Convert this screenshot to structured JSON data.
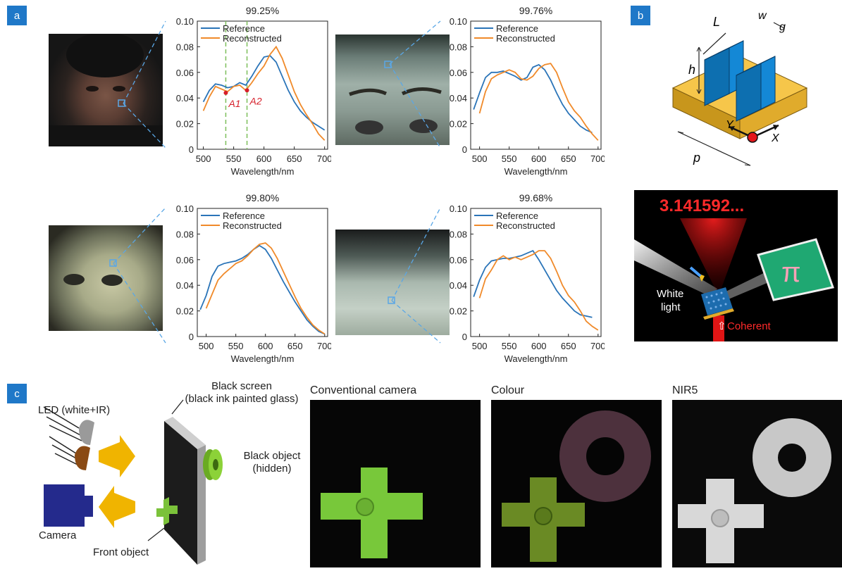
{
  "panels": {
    "a": "a",
    "b": "b",
    "c": "c"
  },
  "spectra": [
    {
      "accuracy": "99.25%",
      "axis_xlabel": "Wavelength/nm",
      "yticks": [
        "0.10",
        "0.08",
        "0.06",
        "0.04",
        "0.02",
        "0"
      ],
      "xticks": [
        "500",
        "550",
        "600",
        "650",
        "700"
      ],
      "markers": [
        "A1",
        "A2"
      ],
      "legend": [
        "Reference",
        "Reconstructed"
      ]
    },
    {
      "accuracy": "99.76%",
      "axis_xlabel": "Wavelength/nm",
      "yticks": [
        "0.10",
        "0.08",
        "0.06",
        "0.04",
        "0.02",
        "0"
      ],
      "xticks": [
        "500",
        "550",
        "600",
        "650",
        "700"
      ],
      "legend": [
        "Reference",
        "Reconstructed"
      ]
    },
    {
      "accuracy": "99.80%",
      "axis_xlabel": "Wavelength/nm",
      "yticks": [
        "0.10",
        "0.08",
        "0.06",
        "0.04",
        "0.02",
        "0"
      ],
      "xticks": [
        "500",
        "550",
        "600",
        "650",
        "700"
      ],
      "legend": [
        "Reference",
        "Reconstructed"
      ]
    },
    {
      "accuracy": "99.68%",
      "axis_xlabel": "Wavelength/nm",
      "yticks": [
        "0.10",
        "0.08",
        "0.06",
        "0.04",
        "0.02",
        "0"
      ],
      "xticks": [
        "500",
        "550",
        "600",
        "650",
        "700"
      ],
      "legend": [
        "Reference",
        "Reconstructed"
      ]
    }
  ],
  "chart_data": [
    {
      "type": "line",
      "xlabel": "Wavelength/nm",
      "ylabel": "",
      "title": "99.25%",
      "xlim": [
        490,
        705
      ],
      "ylim": [
        0,
        0.1
      ],
      "series": [
        {
          "name": "Reference",
          "x": [
            500,
            510,
            520,
            530,
            540,
            550,
            560,
            570,
            580,
            590,
            600,
            610,
            620,
            630,
            640,
            650,
            660,
            670,
            680,
            690,
            700
          ],
          "y": [
            0.037,
            0.046,
            0.051,
            0.05,
            0.048,
            0.049,
            0.052,
            0.05,
            0.057,
            0.065,
            0.072,
            0.073,
            0.068,
            0.057,
            0.046,
            0.037,
            0.03,
            0.025,
            0.021,
            0.018,
            0.015
          ]
        },
        {
          "name": "Reconstructed",
          "x": [
            500,
            510,
            520,
            530,
            540,
            550,
            560,
            570,
            580,
            590,
            600,
            610,
            620,
            630,
            640,
            650,
            660,
            670,
            680,
            690,
            700
          ],
          "y": [
            0.03,
            0.041,
            0.049,
            0.047,
            0.045,
            0.049,
            0.05,
            0.046,
            0.052,
            0.059,
            0.065,
            0.074,
            0.08,
            0.071,
            0.058,
            0.045,
            0.035,
            0.027,
            0.02,
            0.012,
            0.007
          ]
        }
      ],
      "annotations": [
        {
          "label": "A1",
          "x": 537,
          "y": 0.044
        },
        {
          "label": "A2",
          "x": 572,
          "y": 0.046
        }
      ]
    },
    {
      "type": "line",
      "xlabel": "Wavelength/nm",
      "ylabel": "",
      "title": "99.76%",
      "xlim": [
        485,
        705
      ],
      "ylim": [
        0,
        0.1
      ],
      "series": [
        {
          "name": "Reference",
          "x": [
            490,
            500,
            510,
            520,
            530,
            540,
            550,
            560,
            570,
            580,
            590,
            600,
            610,
            620,
            630,
            640,
            650,
            660,
            670,
            680,
            690
          ],
          "y": [
            0.031,
            0.044,
            0.056,
            0.06,
            0.06,
            0.061,
            0.059,
            0.057,
            0.054,
            0.056,
            0.064,
            0.066,
            0.062,
            0.054,
            0.044,
            0.035,
            0.028,
            0.023,
            0.018,
            0.015,
            0.013
          ]
        },
        {
          "name": "Reconstructed",
          "x": [
            500,
            510,
            520,
            530,
            540,
            550,
            560,
            570,
            580,
            590,
            600,
            610,
            620,
            630,
            640,
            650,
            660,
            670,
            680,
            690,
            700
          ],
          "y": [
            0.028,
            0.045,
            0.055,
            0.058,
            0.06,
            0.062,
            0.06,
            0.055,
            0.054,
            0.057,
            0.063,
            0.066,
            0.067,
            0.06,
            0.048,
            0.037,
            0.03,
            0.025,
            0.018,
            0.012,
            0.007
          ]
        }
      ]
    },
    {
      "type": "line",
      "xlabel": "Wavelength/nm",
      "ylabel": "",
      "title": "99.80%",
      "xlim": [
        485,
        705
      ],
      "ylim": [
        0,
        0.1
      ],
      "series": [
        {
          "name": "Reference",
          "x": [
            490,
            500,
            510,
            520,
            530,
            540,
            550,
            560,
            570,
            580,
            590,
            600,
            610,
            620,
            630,
            640,
            650,
            660,
            670,
            680,
            690,
            700
          ],
          "y": [
            0.021,
            0.032,
            0.047,
            0.055,
            0.057,
            0.058,
            0.059,
            0.061,
            0.064,
            0.068,
            0.071,
            0.068,
            0.061,
            0.052,
            0.043,
            0.035,
            0.027,
            0.02,
            0.013,
            0.008,
            0.004,
            0.002
          ]
        },
        {
          "name": "Reconstructed",
          "x": [
            500,
            510,
            520,
            530,
            540,
            550,
            560,
            570,
            580,
            590,
            600,
            610,
            620,
            630,
            640,
            650,
            660,
            670,
            680,
            690,
            700
          ],
          "y": [
            0.022,
            0.033,
            0.044,
            0.049,
            0.053,
            0.057,
            0.059,
            0.063,
            0.068,
            0.072,
            0.073,
            0.069,
            0.061,
            0.051,
            0.041,
            0.031,
            0.022,
            0.015,
            0.009,
            0.005,
            0.002
          ]
        }
      ]
    },
    {
      "type": "line",
      "xlabel": "Wavelength/nm",
      "ylabel": "",
      "title": "99.68%",
      "xlim": [
        485,
        705
      ],
      "ylim": [
        0,
        0.1
      ],
      "series": [
        {
          "name": "Reference",
          "x": [
            490,
            500,
            510,
            520,
            530,
            540,
            550,
            560,
            570,
            580,
            590,
            600,
            610,
            620,
            630,
            640,
            650,
            660,
            670,
            680,
            690
          ],
          "y": [
            0.031,
            0.044,
            0.054,
            0.059,
            0.06,
            0.061,
            0.061,
            0.062,
            0.063,
            0.065,
            0.067,
            0.06,
            0.052,
            0.044,
            0.036,
            0.03,
            0.025,
            0.02,
            0.017,
            0.016,
            0.015
          ]
        },
        {
          "name": "Reconstructed",
          "x": [
            500,
            510,
            520,
            530,
            540,
            550,
            560,
            570,
            580,
            590,
            600,
            610,
            620,
            630,
            640,
            650,
            660,
            670,
            680,
            690,
            700
          ],
          "y": [
            0.03,
            0.045,
            0.052,
            0.06,
            0.063,
            0.06,
            0.062,
            0.06,
            0.062,
            0.064,
            0.067,
            0.067,
            0.061,
            0.051,
            0.04,
            0.032,
            0.027,
            0.02,
            0.012,
            0.008,
            0.005
          ]
        }
      ]
    }
  ],
  "panel_b": {
    "labels": {
      "L": "L",
      "w": "w",
      "g": "g",
      "h": "h",
      "p": "p",
      "x": "X",
      "y": "Y"
    },
    "display_text": "3.141592...",
    "pi_symbol": "π",
    "white_light": "White\nlight",
    "coherent": "Coherent",
    "coherent_arrow": "⇧"
  },
  "panel_c": {
    "black_screen": "Black screen\n(black ink painted glass)",
    "led": "LED (white+IR)",
    "camera": "Camera",
    "front_object": "Front object",
    "black_object": "Black object\n(hidden)",
    "img_titles": [
      "Conventional camera",
      "Colour",
      "NIR5"
    ]
  },
  "colors": {
    "reference": "#2a74b8",
    "reconstructed": "#f08a2a",
    "accent": "#1f78c8",
    "marker": "#d61f2a",
    "dashed": "#7cbe5a"
  }
}
